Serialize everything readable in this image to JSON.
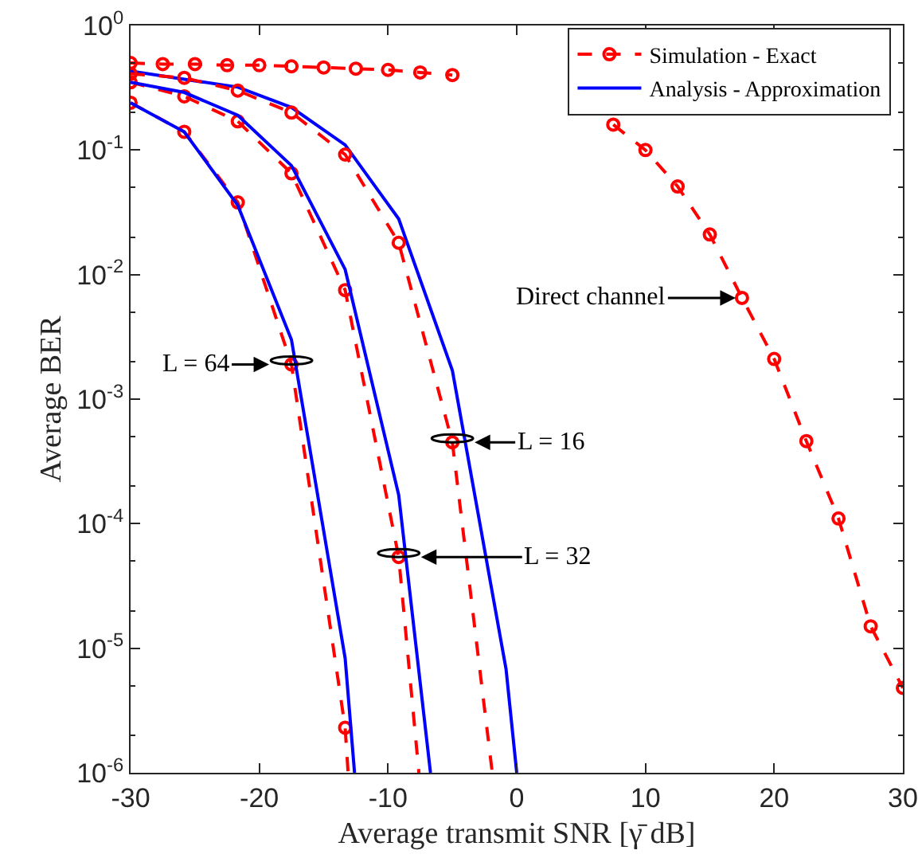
{
  "chart_data": {
    "type": "line",
    "xlabel": "Average transmit SNR [γ̄ dB]",
    "ylabel": "Average BER",
    "log": "y",
    "grid": false,
    "legend": "top right",
    "xlim": [
      -30,
      30
    ],
    "xticks": [
      -30,
      -20,
      -10,
      0,
      10,
      20,
      30
    ],
    "ylim": [
      1e-06,
      1
    ],
    "yticks": [
      {
        "value": 1e-06,
        "label": "10$^{-6}$"
      },
      {
        "value": 1e-05,
        "label": "10$^{-5}$"
      },
      {
        "value": 0.0001,
        "label": "10$^{-4}$"
      },
      {
        "value": 0.001,
        "label": "10$^{-3}$"
      },
      {
        "value": 0.01,
        "label": "10$^{-2}$"
      },
      {
        "value": 0.1,
        "label": "10$^{-1}$"
      },
      {
        "value": 1,
        "label": "10$^{0}$"
      }
    ],
    "series": [
      {
        "name": "Simulation - Exact",
        "type": "line",
        "color": "#ff0000",
        "marker": "circle",
        "line_style": "dashed",
        "x": [
          -30,
          -27.5,
          -25,
          -22.5,
          -20,
          -17.5,
          -15,
          -12.5,
          -10,
          -7.5,
          -5,
          -2.5,
          0,
          2.5,
          5,
          7.5,
          10,
          12.5,
          15,
          17.5,
          20,
          22.5,
          25,
          27.5,
          30
        ],
        "values": [
          0.5,
          0.49,
          0.49,
          0.48,
          0.48,
          0.47,
          0.46,
          0.45,
          0.44,
          0.42,
          0.4,
          null,
          null,
          null,
          null,
          0.16,
          0.1,
          0.051,
          0.021,
          0.0065,
          0.0021,
          0.00046,
          0.00011,
          1.5e-05,
          4.8e-06
        ]
      },
      {
        "name": "Analysis - Approximation",
        "type": "line",
        "color": "#0000ff",
        "marker": "none",
        "line_style": "solid",
        "x": [
          -30,
          -25.83,
          -21.67,
          -17.5,
          -13.33,
          -9.17,
          -5,
          -0.83,
          0
        ],
        "values": [
          0.43,
          0.37,
          0.32,
          0.22,
          0.11,
          0.028,
          0.0017,
          6.8e-06,
          1e-06
        ]
      },
      {
        "type": "line",
        "color": "#ff0000",
        "marker": "circle",
        "line_style": "dashed",
        "x": [
          -30,
          -25.83,
          -21.67,
          -17.5,
          -13.33,
          -9.17,
          -5,
          -1.9
        ],
        "values": [
          0.41,
          0.38,
          0.3,
          0.2,
          0.092,
          0.018,
          0.00045,
          1e-06
        ]
      },
      {
        "type": "line",
        "color": "#ff0000",
        "marker": "circle",
        "line_style": "dashed",
        "x": [
          -30,
          -25.83,
          -21.67,
          -17.5,
          -13.33,
          -9.17,
          -7.6
        ],
        "values": [
          0.35,
          0.27,
          0.17,
          0.065,
          0.0075,
          5.4e-05,
          1e-06
        ]
      },
      {
        "type": "line",
        "color": "#0000ff",
        "marker": "none",
        "line_style": "solid",
        "x": [
          -30,
          -25.83,
          -21.67,
          -17.5,
          -13.33,
          -9.17,
          -6.7
        ],
        "values": [
          0.35,
          0.29,
          0.19,
          0.075,
          0.011,
          0.00017,
          1e-06
        ]
      },
      {
        "type": "line",
        "color": "#ff0000",
        "marker": "circle",
        "line_style": "dashed",
        "x": [
          -30,
          -25.83,
          -21.67,
          -17.5,
          -13.33,
          -13.1
        ],
        "values": [
          0.24,
          0.14,
          0.038,
          0.0019,
          2.3e-06,
          1e-06
        ]
      },
      {
        "type": "line",
        "color": "#0000ff",
        "marker": "none",
        "line_style": "solid",
        "x": [
          -30,
          -25.83,
          -21.67,
          -17.5,
          -13.33,
          -12.6
        ],
        "values": [
          0.24,
          0.14,
          0.036,
          0.003,
          8.3e-06,
          1e-06
        ]
      }
    ],
    "annotations": [
      {
        "text": "L = 64",
        "x": -17.5,
        "y": 0.0019
      },
      {
        "text": "L = 16",
        "x": -5,
        "y": 0.00045
      },
      {
        "text": "L = 32",
        "x": -9.17,
        "y": 5.4e-05
      },
      {
        "text": "Direct channel",
        "x": 17.5,
        "y": 0.0065
      }
    ]
  }
}
